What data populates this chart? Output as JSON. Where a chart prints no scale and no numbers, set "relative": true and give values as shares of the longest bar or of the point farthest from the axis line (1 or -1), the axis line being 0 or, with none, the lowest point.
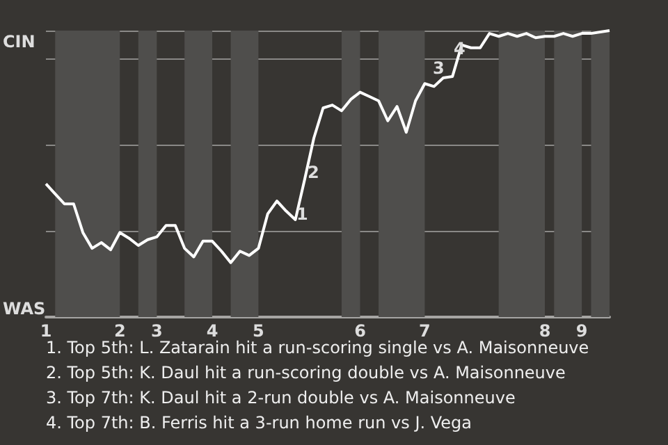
{
  "chart_data": {
    "type": "line",
    "categories": [
      "1",
      null,
      null,
      null,
      null,
      null,
      null,
      null,
      "2",
      null,
      null,
      null,
      "3",
      null,
      null,
      null,
      null,
      null,
      "4",
      null,
      null,
      null,
      null,
      "5",
      null,
      null,
      null,
      null,
      null,
      null,
      null,
      null,
      null,
      null,
      "6",
      null,
      null,
      null,
      null,
      null,
      null,
      "7",
      null,
      null,
      null,
      null,
      null,
      null,
      null,
      null,
      null,
      null,
      null,
      null,
      "8",
      null,
      null,
      null,
      "9",
      null,
      null,
      null
    ],
    "series": [
      {
        "color": "#ffffff",
        "values": [
          0.465,
          0.43,
          0.395,
          0.395,
          0.295,
          0.24,
          0.26,
          0.235,
          0.295,
          0.275,
          0.25,
          0.27,
          0.28,
          0.32,
          0.32,
          0.24,
          0.21,
          0.265,
          0.265,
          0.23,
          0.19,
          0.23,
          0.215,
          0.24,
          0.36,
          0.405,
          0.37,
          0.34,
          0.48,
          0.625,
          0.73,
          0.74,
          0.72,
          0.76,
          0.785,
          0.77,
          0.755,
          0.685,
          0.735,
          0.645,
          0.755,
          0.815,
          0.805,
          0.835,
          0.84,
          0.95,
          0.94,
          0.94,
          0.99,
          0.98,
          0.99,
          0.98,
          0.99,
          0.975,
          0.98,
          0.98,
          0.99,
          0.98,
          0.99,
          0.99,
          0.995,
          1
        ]
      }
    ],
    "relative": true,
    "grid": "y",
    "annotations": [
      "CIN",
      "WAS",
      "1",
      "2",
      "3",
      "4",
      "1. Top 5th: L. Zatarain hit a run-scoring single vs A. Maisonneuve",
      "2. Top 5th: K. Daul hit a run-scoring double vs A. Maisonneuve",
      "3. Top 7th: K. Daul hit a 2-run double vs A. Maisonneuve",
      "4. Top 7th: B. Ferris hit a 3-run home run vs J. Vega"
    ]
  }
}
